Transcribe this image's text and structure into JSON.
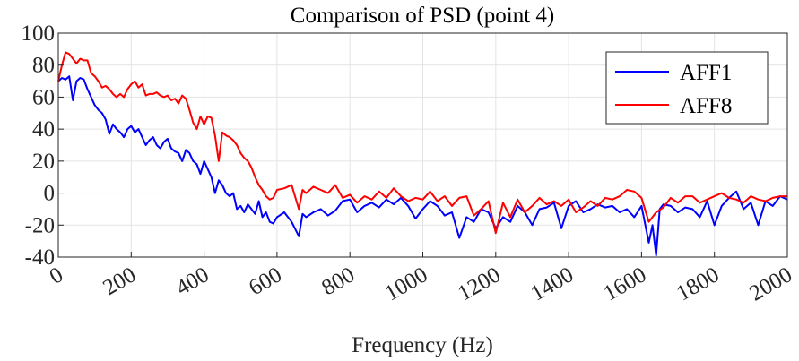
{
  "chart_data": {
    "type": "line",
    "title": "Comparison of PSD (point 4)",
    "xlabel": "Frequency (Hz)",
    "ylabel": "",
    "xlim": [
      0,
      2000
    ],
    "ylim": [
      -40,
      100
    ],
    "xticks": [
      "0",
      "200",
      "400",
      "600",
      "800",
      "1000",
      "1200",
      "1400",
      "1600",
      "1800",
      "2000"
    ],
    "yticks": [
      "100",
      "80",
      "60",
      "40",
      "20",
      "0",
      "-20",
      "-40"
    ],
    "grid": true,
    "legend_position": "top-right",
    "series": [
      {
        "name": "AFF1",
        "color": "#0000ff",
        "x": [
          0,
          10,
          20,
          30,
          40,
          50,
          60,
          70,
          80,
          90,
          100,
          110,
          120,
          130,
          140,
          150,
          160,
          170,
          180,
          190,
          200,
          210,
          220,
          230,
          240,
          250,
          260,
          270,
          280,
          290,
          300,
          310,
          320,
          330,
          340,
          350,
          360,
          370,
          380,
          390,
          400,
          410,
          420,
          430,
          440,
          450,
          460,
          470,
          480,
          490,
          500,
          510,
          520,
          530,
          540,
          550,
          560,
          570,
          580,
          590,
          600,
          620,
          640,
          660,
          670,
          680,
          700,
          720,
          740,
          760,
          780,
          800,
          820,
          840,
          860,
          880,
          900,
          920,
          940,
          960,
          980,
          1000,
          1020,
          1040,
          1060,
          1080,
          1100,
          1120,
          1140,
          1160,
          1180,
          1200,
          1220,
          1240,
          1260,
          1280,
          1300,
          1320,
          1340,
          1360,
          1380,
          1400,
          1420,
          1440,
          1460,
          1480,
          1500,
          1520,
          1540,
          1560,
          1580,
          1600,
          1620,
          1630,
          1640,
          1650,
          1660,
          1680,
          1700,
          1720,
          1740,
          1760,
          1780,
          1800,
          1820,
          1840,
          1860,
          1880,
          1900,
          1920,
          1940,
          1960,
          1980,
          2000
        ],
        "y": [
          70,
          72,
          71,
          73,
          58,
          70,
          72,
          71,
          65,
          60,
          55,
          52,
          50,
          46,
          37,
          43,
          40,
          38,
          35,
          40,
          42,
          38,
          40,
          35,
          30,
          33,
          35,
          30,
          28,
          32,
          34,
          28,
          26,
          25,
          20,
          27,
          25,
          20,
          18,
          12,
          20,
          15,
          10,
          0,
          8,
          5,
          0,
          -2,
          0,
          -10,
          -8,
          -12,
          -7,
          -10,
          -13,
          -5,
          -15,
          -12,
          -18,
          -19,
          -15,
          -12,
          -18,
          -27,
          -13,
          -15,
          -12,
          -10,
          -14,
          -11,
          -5,
          -4,
          -12,
          -8,
          -6,
          -9,
          -4,
          -7,
          -3,
          -8,
          -16,
          -10,
          -5,
          -8,
          -14,
          -12,
          -28,
          -15,
          -18,
          -10,
          -12,
          -22,
          -15,
          -18,
          -8,
          -12,
          -20,
          -10,
          -9,
          -6,
          -22,
          -8,
          -5,
          -12,
          -10,
          -7,
          -9,
          -8,
          -12,
          -10,
          -15,
          -8,
          -31,
          -20,
          -39,
          -10,
          -7,
          -8,
          -12,
          -9,
          -10,
          -15,
          -5,
          -20,
          -8,
          -3,
          1,
          -10,
          -6,
          -20,
          -5,
          -8,
          -2,
          -4
        ]
      },
      {
        "name": "AFF8",
        "color": "#ff0000",
        "x": [
          0,
          10,
          20,
          30,
          40,
          50,
          60,
          70,
          80,
          90,
          100,
          110,
          120,
          130,
          140,
          150,
          160,
          170,
          180,
          190,
          200,
          210,
          220,
          230,
          240,
          250,
          260,
          270,
          280,
          290,
          300,
          310,
          320,
          330,
          340,
          350,
          360,
          370,
          380,
          390,
          400,
          410,
          420,
          430,
          440,
          450,
          460,
          470,
          480,
          490,
          500,
          510,
          520,
          530,
          540,
          550,
          560,
          570,
          580,
          590,
          600,
          620,
          640,
          660,
          670,
          680,
          700,
          720,
          740,
          760,
          780,
          800,
          820,
          840,
          860,
          880,
          900,
          920,
          940,
          960,
          980,
          1000,
          1020,
          1040,
          1060,
          1080,
          1100,
          1120,
          1140,
          1160,
          1180,
          1200,
          1220,
          1240,
          1260,
          1280,
          1300,
          1320,
          1340,
          1360,
          1380,
          1400,
          1420,
          1440,
          1460,
          1480,
          1500,
          1520,
          1540,
          1560,
          1580,
          1600,
          1620,
          1640,
          1660,
          1680,
          1700,
          1720,
          1740,
          1760,
          1780,
          1800,
          1820,
          1840,
          1860,
          1880,
          1900,
          1920,
          1940,
          1960,
          1980,
          2000
        ],
        "y": [
          70,
          80,
          88,
          87,
          84,
          81,
          84,
          83,
          83,
          75,
          73,
          70,
          66,
          67,
          65,
          62,
          60,
          62,
          60,
          65,
          68,
          70,
          66,
          68,
          61,
          62,
          62,
          63,
          61,
          60,
          61,
          58,
          59,
          56,
          61,
          59,
          52,
          44,
          40,
          48,
          43,
          48,
          47,
          36,
          20,
          38,
          36,
          35,
          33,
          30,
          25,
          22,
          20,
          16,
          10,
          5,
          2,
          -2,
          -4,
          -3,
          2,
          3,
          5,
          -10,
          2,
          0,
          4,
          2,
          0,
          5,
          -3,
          -1,
          -6,
          -2,
          -4,
          1,
          -3,
          3,
          -2,
          -5,
          -3,
          -4,
          1,
          -5,
          -2,
          -8,
          -3,
          -2,
          -14,
          -10,
          -5,
          -25,
          -6,
          -15,
          -4,
          -12,
          -8,
          -3,
          -7,
          -5,
          -8,
          -4,
          -12,
          -9,
          -5,
          -8,
          -3,
          -4,
          -2,
          2,
          1,
          -3,
          -18,
          -12,
          -9,
          -3,
          -6,
          -2,
          -2,
          -6,
          -4,
          -2,
          0,
          -3,
          -4,
          -6,
          -2,
          -4,
          -5,
          -3,
          -2,
          -2
        ]
      }
    ]
  }
}
